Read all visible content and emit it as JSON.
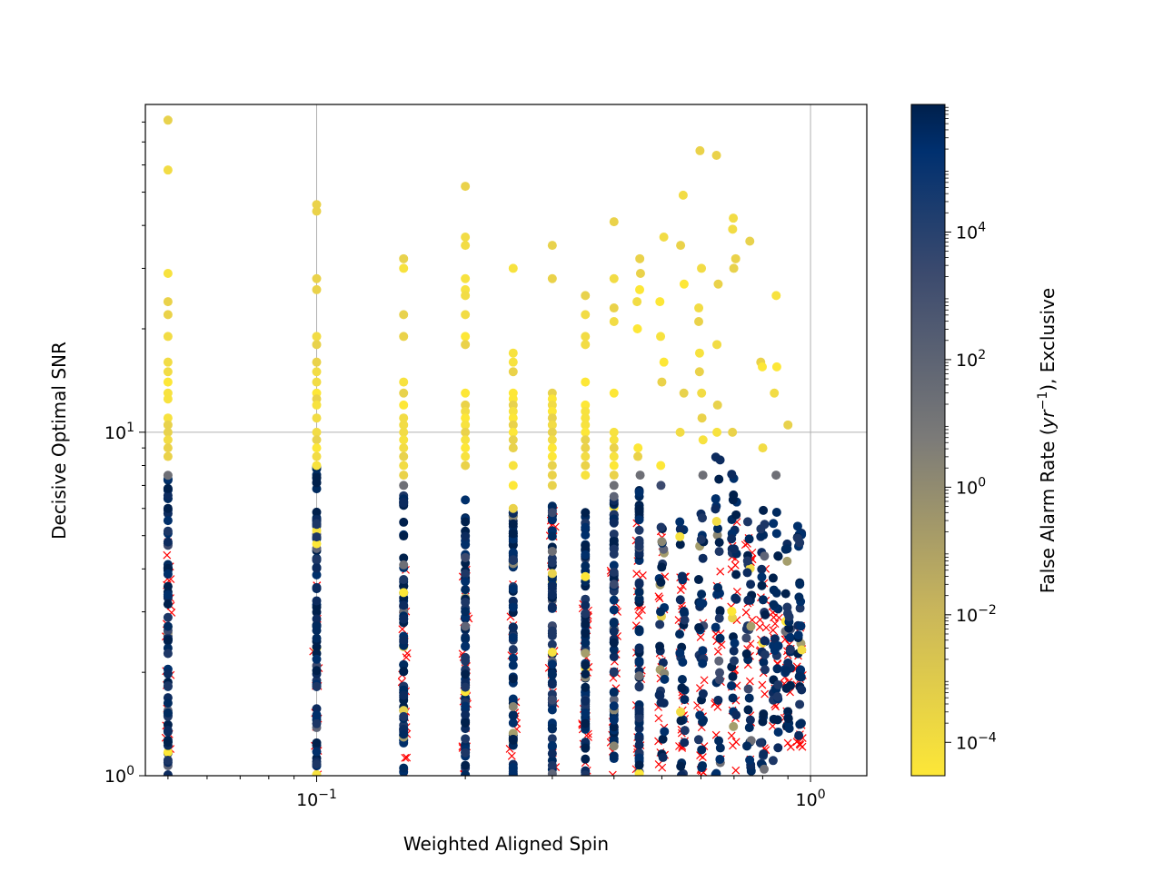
{
  "chart_data": {
    "type": "scatter",
    "title": "",
    "xlabel": "Weighted Aligned Spin",
    "ylabel": "Decisive Optimal SNR",
    "x_scale": "log",
    "y_scale": "log",
    "xlim": [
      0.045,
      1.3
    ],
    "ylim": [
      1,
      90
    ],
    "x_ticks": [
      {
        "value": 0.1,
        "base": "10",
        "exp": "−1"
      },
      {
        "value": 1,
        "base": "10",
        "exp": "0"
      }
    ],
    "y_ticks": [
      {
        "value": 1,
        "base": "10",
        "exp": "0"
      },
      {
        "value": 10,
        "base": "10",
        "exp": "1"
      }
    ],
    "grid": true,
    "x_columns": [
      0.05,
      0.1,
      0.15,
      0.2,
      0.25,
      0.3,
      0.35,
      0.4,
      0.45,
      0.5,
      0.55,
      0.6,
      0.65,
      0.7,
      0.75,
      0.8,
      0.85,
      0.9,
      0.95
    ],
    "found_high_snr": [
      {
        "x": 0.05,
        "y": [
          81,
          58,
          29,
          24,
          22,
          19,
          16,
          15,
          14,
          13,
          12.5,
          11,
          10.5,
          10,
          9.5,
          9,
          8.5
        ]
      },
      {
        "x": 0.1,
        "y": [
          46,
          44,
          28,
          26,
          19,
          18,
          16,
          15,
          14,
          13,
          12.5,
          12,
          11,
          10,
          9.5,
          9,
          8.5,
          8
        ]
      },
      {
        "x": 0.15,
        "y": [
          32,
          30,
          22,
          19,
          14,
          13,
          12,
          11,
          10.5,
          10,
          9.5,
          9,
          8.5,
          8,
          7.5,
          7
        ]
      },
      {
        "x": 0.2,
        "y": [
          52,
          37,
          35,
          28,
          26,
          25,
          22,
          19,
          18,
          13,
          12,
          11.5,
          11,
          10.5,
          10,
          9.5,
          9,
          8.5,
          8
        ]
      },
      {
        "x": 0.25,
        "y": [
          30,
          17,
          16,
          15,
          13,
          12.5,
          12,
          11.5,
          11,
          10.5,
          10,
          9.5,
          9,
          8,
          7,
          6
        ]
      },
      {
        "x": 0.3,
        "y": [
          35,
          28,
          13,
          12.5,
          12,
          11.5,
          11,
          10.5,
          10,
          9.5,
          9,
          8.5,
          8,
          7.5,
          7,
          4.5
        ]
      },
      {
        "x": 0.35,
        "y": [
          25,
          22,
          19,
          18,
          14,
          12,
          11.5,
          11,
          10.5,
          10,
          9.5,
          9,
          8.5,
          8,
          7.5,
          3.8
        ]
      },
      {
        "x": 0.4,
        "y": [
          41,
          28,
          23,
          21,
          13,
          10,
          9.5,
          9,
          8.5,
          8,
          7.5,
          7,
          6.5
        ]
      },
      {
        "x": 0.45,
        "y": [
          32,
          29,
          26,
          24,
          20,
          9,
          8.5,
          7.5
        ]
      },
      {
        "x": 0.5,
        "y": [
          37,
          24,
          19,
          16,
          14,
          8,
          7
        ]
      },
      {
        "x": 0.55,
        "y": [
          49,
          35,
          27,
          13,
          10
        ]
      },
      {
        "x": 0.6,
        "y": [
          66,
          30,
          23,
          21,
          17,
          15,
          13,
          11,
          9.5,
          7.5
        ]
      },
      {
        "x": 0.65,
        "y": [
          64,
          27,
          18,
          12,
          10,
          5.5
        ]
      },
      {
        "x": 0.7,
        "y": [
          42,
          39,
          32,
          30,
          10
        ]
      },
      {
        "x": 0.75,
        "y": [
          36
        ]
      },
      {
        "x": 0.8,
        "y": [
          16,
          15.5,
          9
        ]
      },
      {
        "x": 0.85,
        "y": [
          25,
          15.5,
          13,
          7.5
        ]
      },
      {
        "x": 0.9,
        "y": [
          10.5
        ]
      }
    ],
    "found_low_snr": [
      {
        "x": 0.05,
        "y_min": 1,
        "y_max": 8
      },
      {
        "x": 0.1,
        "y_min": 1,
        "y_max": 8
      },
      {
        "x": 0.15,
        "y_min": 1,
        "y_max": 7
      },
      {
        "x": 0.2,
        "y_min": 1,
        "y_max": 7
      },
      {
        "x": 0.25,
        "y_min": 1,
        "y_max": 6
      },
      {
        "x": 0.3,
        "y_min": 1,
        "y_max": 6.5
      },
      {
        "x": 0.35,
        "y_min": 1,
        "y_max": 6.5
      },
      {
        "x": 0.4,
        "y_min": 1,
        "y_max": 6.5
      },
      {
        "x": 0.45,
        "y_min": 1,
        "y_max": 7
      },
      {
        "x": 0.5,
        "y_min": 1,
        "y_max": 6.5
      },
      {
        "x": 0.55,
        "y_min": 1,
        "y_max": 6.5
      },
      {
        "x": 0.6,
        "y_min": 1,
        "y_max": 6
      },
      {
        "x": 0.65,
        "y_min": 1,
        "y_max": 8.5
      },
      {
        "x": 0.7,
        "y_min": 1,
        "y_max": 8
      },
      {
        "x": 0.75,
        "y_min": 1,
        "y_max": 7
      },
      {
        "x": 0.8,
        "y_min": 1,
        "y_max": 6
      },
      {
        "x": 0.85,
        "y_min": 1.1,
        "y_max": 6
      },
      {
        "x": 0.9,
        "y_min": 1.3,
        "y_max": 5.2
      },
      {
        "x": 0.95,
        "y_min": 1.3,
        "y_max": 5.5
      }
    ],
    "missed_ranges": [
      {
        "x": 0.05,
        "y_min": 1,
        "y_max": 5
      },
      {
        "x": 0.1,
        "y_min": 1,
        "y_max": 4.5
      },
      {
        "x": 0.15,
        "y_min": 1,
        "y_max": 4
      },
      {
        "x": 0.2,
        "y_min": 1,
        "y_max": 4.5
      },
      {
        "x": 0.25,
        "y_min": 1,
        "y_max": 4
      },
      {
        "x": 0.3,
        "y_min": 1,
        "y_max": 6
      },
      {
        "x": 0.35,
        "y_min": 1,
        "y_max": 4
      },
      {
        "x": 0.4,
        "y_min": 1,
        "y_max": 4
      },
      {
        "x": 0.45,
        "y_min": 1,
        "y_max": 5.5
      },
      {
        "x": 0.5,
        "y_min": 1,
        "y_max": 5.5
      },
      {
        "x": 0.55,
        "y_min": 1,
        "y_max": 4
      },
      {
        "x": 0.6,
        "y_min": 1,
        "y_max": 3.5
      },
      {
        "x": 0.65,
        "y_min": 1,
        "y_max": 4.5
      },
      {
        "x": 0.7,
        "y_min": 1,
        "y_max": 5.5
      },
      {
        "x": 0.75,
        "y_min": 1.1,
        "y_max": 5
      },
      {
        "x": 0.8,
        "y_min": 1.1,
        "y_max": 4.5
      },
      {
        "x": 0.85,
        "y_min": 1.3,
        "y_max": 3.2
      },
      {
        "x": 0.9,
        "y_min": 1.2,
        "y_max": 3
      },
      {
        "x": 0.95,
        "y_min": 1.2,
        "y_max": 3
      }
    ],
    "colorbar": {
      "label_prefix": "False Alarm Rate (",
      "label_unit_base": "yr",
      "label_unit_exp": "−1",
      "label_suffix": "), Exclusive",
      "scale": "log",
      "range": [
        3e-05,
        1000000
      ],
      "ticks": [
        {
          "value": 0.0001,
          "base": "10",
          "exp": "−4"
        },
        {
          "value": 0.01,
          "base": "10",
          "exp": "−2"
        },
        {
          "value": 1,
          "base": "10",
          "exp": "0"
        },
        {
          "value": 100,
          "base": "10",
          "exp": "2"
        },
        {
          "value": 10000,
          "base": "10",
          "exp": "4"
        }
      ],
      "colormap": "cividis_r",
      "color_low": "#fde737",
      "color_mid": "#7c7b78",
      "color_high": "#00204c"
    },
    "colors": {
      "missed_marker": "#ff0000",
      "found_low_far": "#f0d84a",
      "found_high_far": "#002a5e",
      "grid": "#b0b0b0"
    }
  }
}
